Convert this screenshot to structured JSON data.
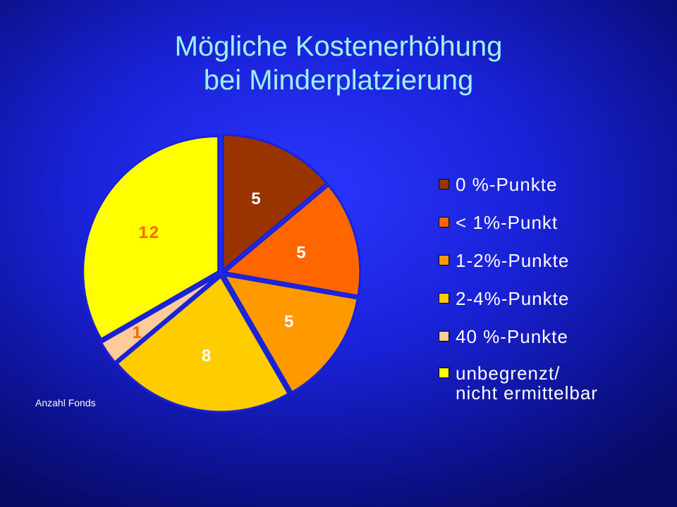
{
  "chart_data": {
    "type": "pie",
    "title_lines": [
      "Mögliche Kostenerhöhung",
      "bei Minderplatzierung"
    ],
    "note": "Anzahl Fonds",
    "slices": [
      {
        "label": "0 %-Punkte",
        "value": 5,
        "color": "#993300",
        "label_color": "#ffffff"
      },
      {
        "label": "< 1%-Punkt",
        "value": 5,
        "color": "#ff6600",
        "label_color": "#ffffff"
      },
      {
        "label": "1-2%-Punkte",
        "value": 5,
        "color": "#ff9900",
        "label_color": "#ffffff"
      },
      {
        "label": "2-4%-Punkte",
        "value": 8,
        "color": "#ffcc00",
        "label_color": "#ffffff"
      },
      {
        "label": "40 %-Punkte",
        "value": 1,
        "color": "#ffcc99",
        "label_color": "#ff6600"
      },
      {
        "label": "unbegrenzt/ nicht ermittelbar",
        "value": 12,
        "color": "#ffff00",
        "label_color": "#ff6600"
      }
    ],
    "legend_labels": [
      "0 %-Punkte",
      "< 1%-Punkt",
      "1-2%-Punkte",
      "2-4%-Punkte",
      "40 %-Punkte",
      "unbegrenzt/\nnicht ermittelbar"
    ],
    "legend_position": "right",
    "text_color": "#9ff0f0",
    "slice_gap_color": "#1a22d8"
  }
}
